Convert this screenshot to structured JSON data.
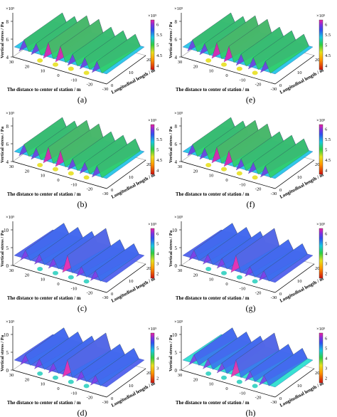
{
  "chart_data": [
    {
      "type": "surface",
      "panel": "(a)",
      "multiplier": "×10⁵",
      "zlabel": "Vertical stress / Pa",
      "xlabel": "The distance to center of station / m",
      "ylabel": "Longitudinal length / m",
      "x_ticks": [
        "30",
        "20",
        "10",
        "0",
        "-10",
        "-20",
        "-30"
      ],
      "y_ticks": [
        "0",
        "10",
        "20"
      ],
      "z_ticks": [
        "4",
        "6",
        "8"
      ],
      "colorbar_ticks": [
        "4",
        "4.5",
        "5",
        "5.5",
        "6"
      ],
      "colorbar_range": [
        3.8,
        6.2
      ],
      "colormap": "rainbow",
      "ridges": 7
    },
    {
      "type": "surface",
      "panel": "(b)",
      "multiplier": "×10⁵",
      "zlabel": "Vertical stress / Pa",
      "xlabel": "The distance to center of station / m",
      "ylabel": "Longitudinal length / m",
      "x_ticks": [
        "30",
        "20",
        "10",
        "0",
        "-10",
        "-20",
        "-30"
      ],
      "y_ticks": [
        "0",
        "10",
        "20"
      ],
      "z_ticks": [
        "4",
        "6",
        "8"
      ],
      "colorbar_ticks": [
        "4",
        "4.5",
        "5",
        "5.5",
        "6"
      ],
      "colorbar_range": [
        3.8,
        6.2
      ],
      "colormap": "rainbow",
      "ridges": 7
    },
    {
      "type": "surface",
      "panel": "(c)",
      "multiplier": "×10⁵",
      "zlabel": "Vertical stress / Pa",
      "xlabel": "The distance to center of station / m",
      "ylabel": "Longitudinal length / m",
      "x_ticks": [
        "30",
        "20",
        "10",
        "0",
        "-10",
        "-20",
        "-30"
      ],
      "y_ticks": [
        "0",
        "10",
        "20"
      ],
      "z_ticks": [
        "0",
        "5",
        "10"
      ],
      "colorbar_ticks": [
        "2",
        "3",
        "4",
        "5",
        "6"
      ],
      "colorbar_range": [
        1.5,
        6.5
      ],
      "colormap": "rainbow",
      "ridges": 6
    },
    {
      "type": "surface",
      "panel": "(d)",
      "multiplier": "×10⁵",
      "zlabel": "Vertical stress / Pa",
      "xlabel": "The distance to center of station / m",
      "ylabel": "Longitudinal length / m",
      "x_ticks": [
        "30",
        "20",
        "10",
        "0",
        "-10",
        "-20",
        "-30"
      ],
      "y_ticks": [
        "0",
        "10",
        "20"
      ],
      "z_ticks": [
        "0",
        "5",
        "10"
      ],
      "colorbar_ticks": [
        "2",
        "3",
        "4",
        "5",
        "6"
      ],
      "colorbar_range": [
        1.5,
        6.5
      ],
      "colormap": "rainbow",
      "ridges": 6
    },
    {
      "type": "surface",
      "panel": "(e)",
      "multiplier": "×10⁵",
      "zlabel": "Vertical stress / Pa",
      "xlabel": "The distance to center of station / m",
      "ylabel": "Longitudinal length / m",
      "x_ticks": [
        "30",
        "20",
        "10",
        "0",
        "-10",
        "-20",
        "-30"
      ],
      "y_ticks": [
        "0",
        "10",
        "20"
      ],
      "z_ticks": [
        "4",
        "6",
        "8"
      ],
      "colorbar_ticks": [
        "4",
        "4.5",
        "5",
        "5.5",
        "6"
      ],
      "colorbar_range": [
        3.8,
        6.2
      ],
      "colormap": "rainbow",
      "ridges": 7
    },
    {
      "type": "surface",
      "panel": "(f)",
      "multiplier": "×10⁵",
      "zlabel": "Vertical stress / Pa",
      "xlabel": "The distance to center of station / m",
      "ylabel": "Longitudinal length / m",
      "x_ticks": [
        "30",
        "20",
        "10",
        "0",
        "-10",
        "-20",
        "-30"
      ],
      "y_ticks": [
        "0",
        "10",
        "20"
      ],
      "z_ticks": [
        "4",
        "6",
        "8"
      ],
      "colorbar_ticks": [
        "4",
        "4.5",
        "5",
        "5.5",
        "6"
      ],
      "colorbar_range": [
        3.8,
        6.2
      ],
      "colormap": "rainbow",
      "ridges": 7
    },
    {
      "type": "surface",
      "panel": "(g)",
      "multiplier": "×10⁵",
      "zlabel": "Vertical stress / Pa",
      "xlabel": "The distance to center of station / m",
      "ylabel": "Longitudinal length / m",
      "x_ticks": [
        "30",
        "20",
        "10",
        "0",
        "-10",
        "-20",
        "-30"
      ],
      "y_ticks": [
        "0",
        "10",
        "20"
      ],
      "z_ticks": [
        "0",
        "5",
        "10"
      ],
      "colorbar_ticks": [
        "2",
        "3",
        "4",
        "5",
        "6"
      ],
      "colorbar_range": [
        1.5,
        6.5
      ],
      "colormap": "rainbow",
      "ridges": 6
    },
    {
      "type": "surface",
      "panel": "(h)",
      "multiplier": "×10⁵",
      "zlabel": "Vertical stress / Pa",
      "xlabel": "The distance to center of station / m",
      "ylabel": "Longitudinal length / m",
      "x_ticks": [
        "30",
        "20",
        "10",
        "0",
        "-10",
        "-20",
        "-30"
      ],
      "y_ticks": [
        "0",
        "10",
        "20"
      ],
      "z_ticks": [
        "0",
        "5",
        "10"
      ],
      "colorbar_ticks": [
        "2",
        "3",
        "4",
        "5",
        "6"
      ],
      "colorbar_range": [
        1.5,
        6.5
      ],
      "colormap": "rainbow",
      "ridges": 6
    }
  ]
}
